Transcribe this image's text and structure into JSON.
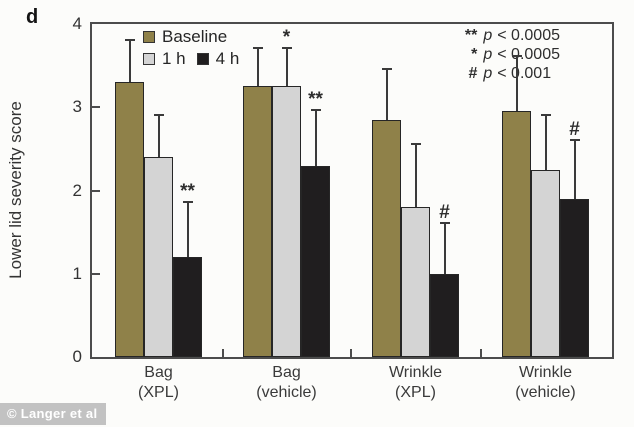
{
  "panel_label": "d",
  "watermark": {
    "text": "© Langer et al"
  },
  "chart_data": {
    "type": "bar",
    "title": "",
    "xlabel": "",
    "ylabel": "Lower lid severity score",
    "ylim": [
      0,
      4
    ],
    "yticks": [
      0,
      1,
      2,
      3,
      4
    ],
    "grid": false,
    "legend_position": "top-left-inside",
    "error_bars": "upper-only",
    "categories": [
      {
        "line1": "Bag",
        "line2": "(XPL)"
      },
      {
        "line1": "Bag",
        "line2": "(vehicle)"
      },
      {
        "line1": "Wrinkle",
        "line2": "(XPL)"
      },
      {
        "line1": "Wrinkle",
        "line2": "(vehicle)"
      }
    ],
    "series": [
      {
        "name": "Baseline",
        "color": "#8f8149",
        "values": [
          3.3,
          3.25,
          2.85,
          2.95
        ],
        "error_top": [
          3.8,
          3.7,
          3.45,
          3.6
        ],
        "markers": [
          "",
          "",
          "",
          ""
        ]
      },
      {
        "name": "1 h",
        "color": "#d4d4d4",
        "values": [
          2.4,
          3.25,
          1.8,
          2.25
        ],
        "error_top": [
          2.9,
          3.7,
          2.55,
          2.9
        ],
        "markers": [
          "",
          "*",
          "",
          ""
        ]
      },
      {
        "name": "4 h",
        "color": "#201e1f",
        "values": [
          1.2,
          2.3,
          1.0,
          1.9
        ],
        "error_top": [
          1.85,
          2.95,
          1.6,
          2.6
        ],
        "markers": [
          "**",
          "**",
          "#",
          "#"
        ]
      }
    ],
    "legend_rows": [
      [
        0
      ],
      [
        1,
        2
      ]
    ],
    "annotations": [
      {
        "symbol": "**",
        "var": "p",
        "relation": "< 0.0005"
      },
      {
        "symbol": "*",
        "var": "p",
        "relation": "< 0.0005"
      },
      {
        "symbol": "#",
        "var": "p",
        "relation": "< 0.001"
      }
    ]
  }
}
